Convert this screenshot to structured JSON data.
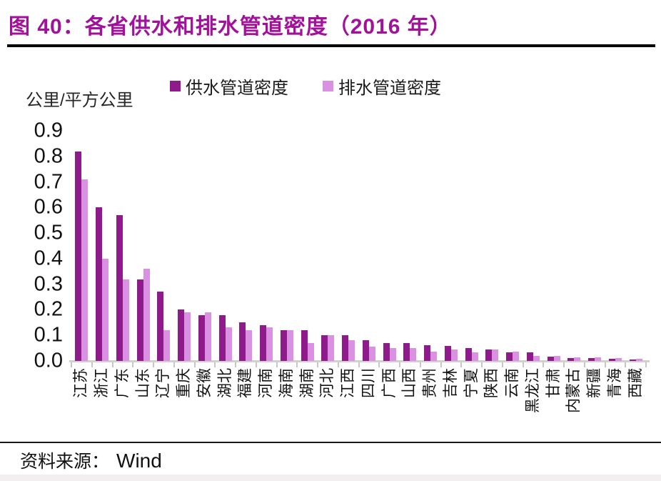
{
  "header": {
    "title": "图 40：各省供水和排水管道密度（2016 年）"
  },
  "chart_data": {
    "type": "bar",
    "title": "各省供水和排水管道密度（2016 年）",
    "unit_label": "公里/平方公里",
    "categories": [
      "江苏",
      "浙江",
      "广东",
      "山东",
      "辽宁",
      "重庆",
      "安徽",
      "湖北",
      "福建",
      "河南",
      "海南",
      "湖南",
      "河北",
      "江西",
      "四川",
      "广西",
      "山西",
      "贵州",
      "吉林",
      "宁夏",
      "陕西",
      "云南",
      "黑龙江",
      "甘肃",
      "内蒙古",
      "新疆",
      "青海",
      "西藏"
    ],
    "series": [
      {
        "name": "供水管道密度",
        "color": "#8e1a8c",
        "values": [
          0.82,
          0.6,
          0.57,
          0.32,
          0.27,
          0.2,
          0.18,
          0.18,
          0.15,
          0.14,
          0.12,
          0.12,
          0.1,
          0.1,
          0.08,
          0.07,
          0.07,
          0.062,
          0.059,
          0.05,
          0.044,
          0.034,
          0.033,
          0.016,
          0.012,
          0.011,
          0.009,
          0.006
        ]
      },
      {
        "name": "排水管道密度",
        "color": "#da91e2",
        "values": [
          0.71,
          0.4,
          0.32,
          0.36,
          0.12,
          0.19,
          0.19,
          0.13,
          0.12,
          0.13,
          0.12,
          0.07,
          0.1,
          0.08,
          0.055,
          0.05,
          0.05,
          0.035,
          0.045,
          0.033,
          0.045,
          0.036,
          0.019,
          0.02,
          0.015,
          0.013,
          0.011,
          0.008
        ]
      }
    ],
    "ylim": [
      0,
      0.9
    ],
    "y_ticks": [
      "0.9",
      "0.8",
      "0.7",
      "0.6",
      "0.5",
      "0.4",
      "0.3",
      "0.2",
      "0.1",
      "0.0"
    ],
    "grid": false,
    "legend_position": "top-center"
  },
  "source": {
    "label": "资料来源：",
    "value": "Wind"
  },
  "colors": {
    "title": "#a1119a",
    "supply_bar": "#8e1a8c",
    "drainage_bar": "#da91e2",
    "axis_line": "#d2cfcf",
    "tick_mark": "#c9c6c6"
  }
}
